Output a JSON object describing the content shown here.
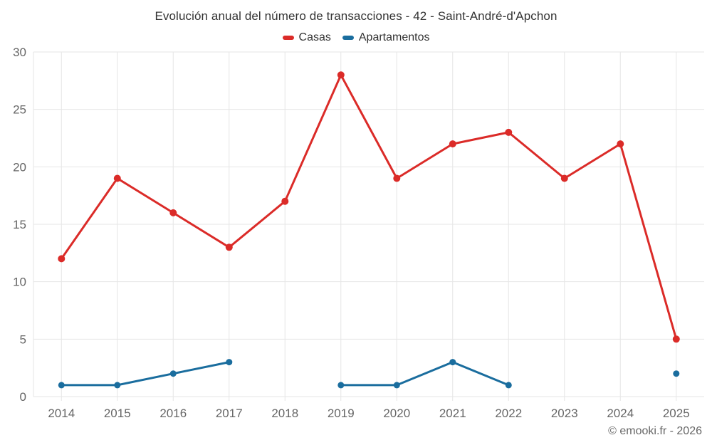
{
  "title": "Evolución anual del número de transacciones - 42 - Saint-André-d'Apchon",
  "credit": "© emooki.fr - 2026",
  "colors": {
    "casas": "#db2b28",
    "apartamentos": "#1a6d9e",
    "grid": "#e6e6e6",
    "tick_label": "#666666",
    "title_text": "#333333"
  },
  "chart_data": {
    "type": "line",
    "title": "Evolución anual del número de transacciones - 42 - Saint-André-d'Apchon",
    "xlabel": "",
    "ylabel": "",
    "categories": [
      "2014",
      "2015",
      "2016",
      "2017",
      "2018",
      "2019",
      "2020",
      "2021",
      "2022",
      "2023",
      "2024",
      "2025"
    ],
    "series": [
      {
        "name": "Casas",
        "color": "#db2b28",
        "values": [
          12,
          19,
          16,
          13,
          17,
          28,
          19,
          22,
          23,
          19,
          22,
          5
        ]
      },
      {
        "name": "Apartamentos",
        "color": "#1a6d9e",
        "values": [
          1,
          1,
          2,
          3,
          null,
          1,
          1,
          3,
          1,
          null,
          null,
          2
        ]
      }
    ],
    "ylim": [
      0,
      30
    ],
    "ytick_step": 5,
    "yticks": [
      0,
      5,
      10,
      15,
      20,
      25,
      30
    ],
    "grid": true,
    "legend_position": "top",
    "legend_labels": [
      "Casas",
      "Apartamentos"
    ]
  }
}
